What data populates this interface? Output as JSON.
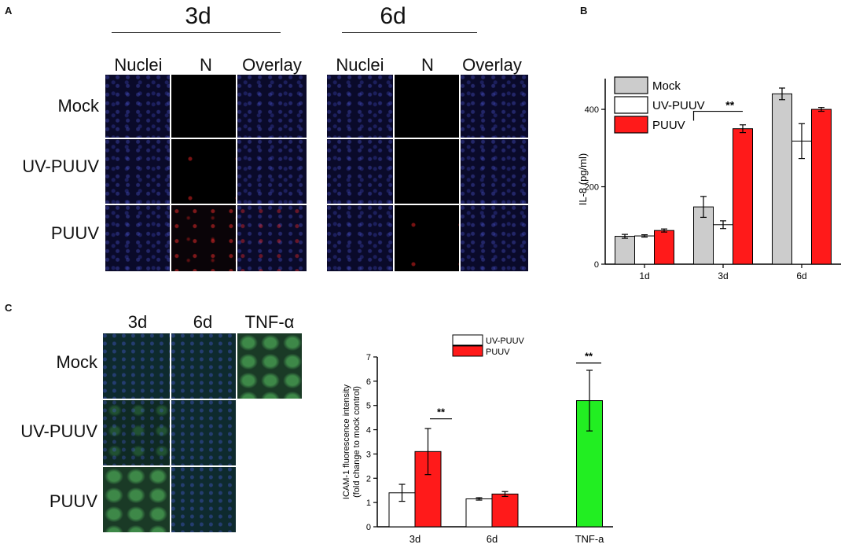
{
  "panelA": {
    "label": "A",
    "groups": [
      {
        "title": "3d",
        "columns": [
          "Nuclei",
          "N",
          "Overlay"
        ]
      },
      {
        "title": "6d",
        "columns": [
          "Nuclei",
          "N",
          "Overlay"
        ]
      }
    ],
    "rows": [
      "Mock",
      "UV-PUUV",
      "PUUV"
    ]
  },
  "panelB": {
    "label": "B"
  },
  "panelC": {
    "label": "C",
    "columns": [
      "3d",
      "6d",
      "TNF-α"
    ],
    "rows": [
      "Mock",
      "UV-PUUV",
      "PUUV"
    ]
  },
  "chart_data": [
    {
      "type": "bar",
      "title": "",
      "xlabel": "",
      "ylabel": "IL-8 (pg/ml)",
      "categories": [
        "1d",
        "3d",
        "6d"
      ],
      "ylim": [
        0,
        520
      ],
      "yticks": [
        0,
        200,
        400
      ],
      "series": [
        {
          "name": "Mock",
          "color": "#cccccc",
          "values": [
            72,
            148,
            440
          ],
          "errors": [
            5,
            27,
            15
          ]
        },
        {
          "name": "UV-PUUV",
          "color": "#ffffff",
          "values": [
            73,
            102,
            318
          ],
          "errors": [
            3,
            10,
            45
          ]
        },
        {
          "name": "PUUV",
          "color": "#ff1a1a",
          "values": [
            87,
            350,
            400
          ],
          "errors": [
            4,
            10,
            5
          ]
        }
      ],
      "significance": [
        {
          "label": "**",
          "between": "3d UV-PUUV vs PUUV"
        }
      ]
    },
    {
      "type": "bar",
      "title": "",
      "xlabel": "",
      "ylabel": "ICAM-1 fluorescence intensity",
      "ylabel2": "(fold change to mock control)",
      "categories": [
        "3d",
        "6d",
        "TNF-a"
      ],
      "ylim": [
        0,
        7
      ],
      "yticks": [
        0,
        1,
        2,
        3,
        4,
        5,
        6,
        7
      ],
      "series": [
        {
          "name": "UV-PUUV",
          "color": "#ffffff",
          "values": [
            1.4,
            1.15,
            null
          ],
          "errors": [
            0.35,
            0.05,
            null
          ]
        },
        {
          "name": "PUUV",
          "color": "#ff1a1a",
          "values": [
            3.1,
            1.35,
            null
          ],
          "errors": [
            0.95,
            0.1,
            null
          ]
        },
        {
          "name": "TNF-a",
          "color": "#22ee22",
          "values": [
            null,
            null,
            5.2
          ],
          "errors": [
            null,
            null,
            1.25
          ]
        }
      ],
      "legend": [
        "UV-PUUV",
        "PUUV"
      ],
      "significance": [
        {
          "label": "**",
          "between": "3d"
        },
        {
          "label": "**",
          "between": "TNF-a"
        }
      ]
    }
  ]
}
